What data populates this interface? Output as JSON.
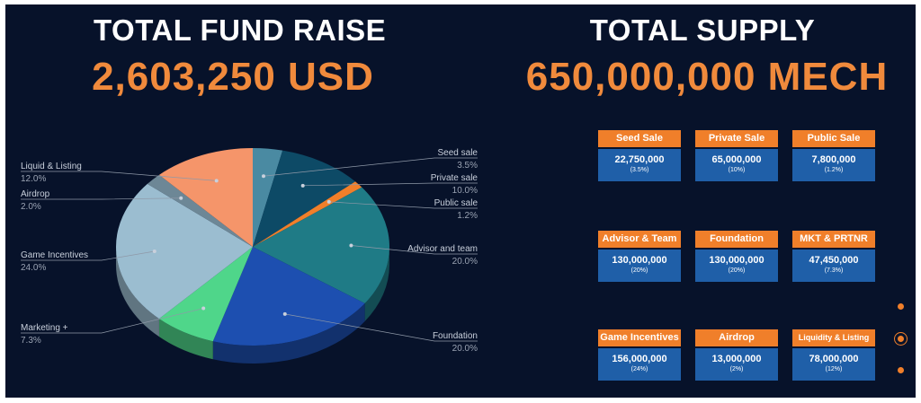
{
  "fund": {
    "title": "TOTAL FUND RAISE",
    "value": "2,603,250 USD"
  },
  "supply": {
    "title": "TOTAL SUPPLY",
    "value": "650,000,000 MECH"
  },
  "chart_data": {
    "type": "pie",
    "slices": [
      {
        "label": "Seed sale",
        "pct_label": "3.5%",
        "value": 3.5,
        "color": "#4a8aa2"
      },
      {
        "label": "Private sale",
        "pct_label": "10.0%",
        "value": 10.0,
        "color": "#0d4a66"
      },
      {
        "label": "Public sale",
        "pct_label": "1.2%",
        "value": 1.2,
        "color": "#f07f2a"
      },
      {
        "label": "Advisor and team",
        "pct_label": "20.0%",
        "value": 20.0,
        "color": "#1f7b86"
      },
      {
        "label": "Foundation",
        "pct_label": "20.0%",
        "value": 20.0,
        "color": "#1d4fb0"
      },
      {
        "label": "Marketing +",
        "pct_label": "7.3%",
        "value": 7.3,
        "color": "#4fd68a"
      },
      {
        "label": "Game Incentives",
        "pct_label": "24.0%",
        "value": 24.0,
        "color": "#9bbdd0"
      },
      {
        "label": "Airdrop",
        "pct_label": "2.0%",
        "value": 2.0,
        "color": "#6d8796"
      },
      {
        "label": "Liquid & Listing",
        "pct_label": "12.0%",
        "value": 12.0,
        "color": "#f5956a"
      }
    ]
  },
  "allocations": [
    {
      "name": "Seed Sale",
      "amount": "22,750,000",
      "pct": "(3.5%)"
    },
    {
      "name": "Private Sale",
      "amount": "65,000,000",
      "pct": "(10%)"
    },
    {
      "name": "Public Sale",
      "amount": "7,800,000",
      "pct": "(1.2%)"
    },
    {
      "name": "Advisor & Team",
      "amount": "130,000,000",
      "pct": "(20%)"
    },
    {
      "name": "Foundation",
      "amount": "130,000,000",
      "pct": "(20%)"
    },
    {
      "name": "MKT & PRTNR",
      "amount": "47,450,000",
      "pct": "(7.3%)"
    },
    {
      "name": "Game Incentives",
      "amount": "156,000,000",
      "pct": "(24%)"
    },
    {
      "name": "Airdrop",
      "amount": "13,000,000",
      "pct": "(2%)"
    },
    {
      "name": "Liquidity & Listing",
      "amount": "78,000,000",
      "pct": "(12%)"
    }
  ],
  "pager": {
    "pages": 3,
    "active": 2
  }
}
